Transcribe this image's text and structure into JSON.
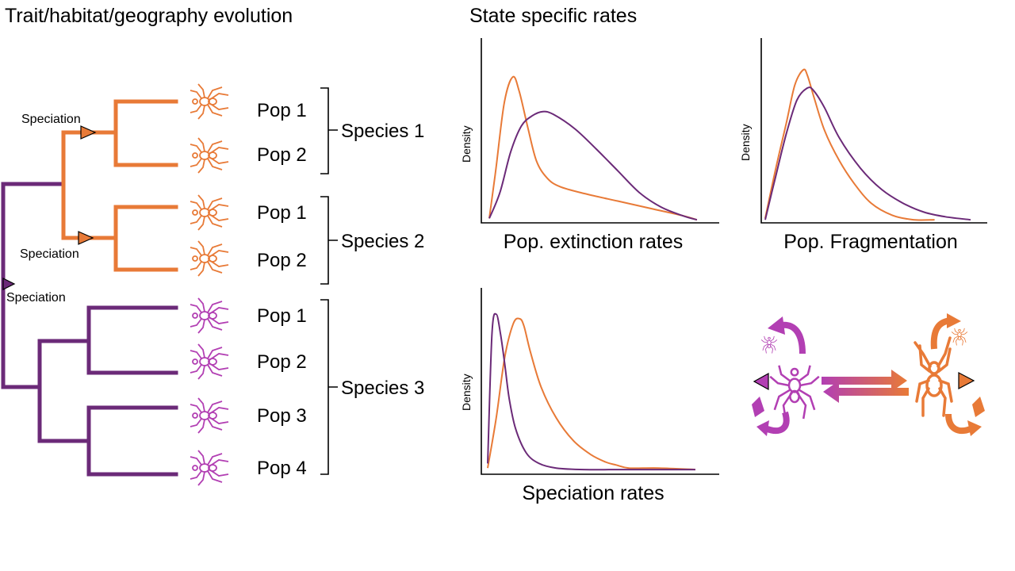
{
  "headings": {
    "left": "Trait/habitat/geography evolution",
    "right": "State specific rates"
  },
  "tree": {
    "speciation_labels": [
      "Speciation",
      "Speciation",
      "Speciation"
    ],
    "populations": [
      "Pop 1",
      "Pop 2",
      "Pop 1",
      "Pop 2",
      "Pop 1",
      "Pop 2",
      "Pop 3",
      "Pop 4"
    ],
    "species": [
      "Species 1",
      "Species 2",
      "Species 3"
    ]
  },
  "colors": {
    "orange": "#E87A37",
    "purple": "#6B2A78",
    "magenta": "#B23FB3",
    "black": "#000000"
  },
  "icons": {
    "spider": "spider-icon",
    "speciation_marker": "triangle-marker-icon",
    "transition": "double-arrow-icon"
  },
  "chart_data": [
    {
      "type": "line",
      "title": "",
      "xlabel": "Pop. extinction rates",
      "ylabel": "Density",
      "xlim": [
        0,
        1
      ],
      "ylim": [
        0,
        1
      ],
      "series": [
        {
          "name": "orange state",
          "color": "#E87A37",
          "x": [
            0.0,
            0.03,
            0.07,
            0.11,
            0.14,
            0.18,
            0.22,
            0.27,
            0.33,
            0.45,
            0.6,
            0.75,
            0.9,
            0.97
          ],
          "y": [
            0.02,
            0.35,
            0.82,
            1.0,
            0.9,
            0.65,
            0.42,
            0.3,
            0.24,
            0.19,
            0.14,
            0.09,
            0.04,
            0.01
          ]
        },
        {
          "name": "purple state",
          "color": "#6B2A78",
          "x": [
            0.0,
            0.05,
            0.1,
            0.15,
            0.2,
            0.25,
            0.3,
            0.4,
            0.5,
            0.6,
            0.7,
            0.8,
            0.9,
            0.97
          ],
          "y": [
            0.02,
            0.2,
            0.48,
            0.66,
            0.73,
            0.76,
            0.74,
            0.64,
            0.5,
            0.35,
            0.2,
            0.1,
            0.04,
            0.01
          ]
        }
      ]
    },
    {
      "type": "line",
      "title": "",
      "xlabel": "Pop. Fragmentation",
      "ylabel": "Density",
      "xlim": [
        0,
        1
      ],
      "ylim": [
        0,
        1
      ],
      "series": [
        {
          "name": "orange state",
          "color": "#E87A37",
          "x": [
            0.0,
            0.05,
            0.1,
            0.14,
            0.18,
            0.2,
            0.23,
            0.28,
            0.35,
            0.42,
            0.5,
            0.6,
            0.7,
            0.8
          ],
          "y": [
            0.02,
            0.35,
            0.65,
            0.9,
            1.0,
            0.96,
            0.82,
            0.6,
            0.4,
            0.25,
            0.12,
            0.04,
            0.01,
            0.01
          ]
        },
        {
          "name": "purple state",
          "color": "#6B2A78",
          "x": [
            0.0,
            0.05,
            0.1,
            0.15,
            0.2,
            0.23,
            0.28,
            0.35,
            0.45,
            0.55,
            0.65,
            0.75,
            0.85,
            0.97
          ],
          "y": [
            0.01,
            0.3,
            0.58,
            0.8,
            0.88,
            0.86,
            0.75,
            0.55,
            0.35,
            0.21,
            0.12,
            0.06,
            0.03,
            0.01
          ]
        }
      ]
    },
    {
      "type": "line",
      "title": "",
      "xlabel": "Speciation rates",
      "ylabel": "Density",
      "xlim": [
        0,
        1
      ],
      "ylim": [
        0,
        1
      ],
      "series": [
        {
          "name": "orange state",
          "color": "#E87A37",
          "x": [
            0.0,
            0.04,
            0.08,
            0.12,
            0.15,
            0.17,
            0.2,
            0.25,
            0.32,
            0.4,
            0.48,
            0.55,
            0.6,
            0.66,
            0.8,
            0.97
          ],
          "y": [
            0.02,
            0.35,
            0.75,
            0.97,
            1.0,
            0.95,
            0.78,
            0.55,
            0.35,
            0.2,
            0.11,
            0.06,
            0.04,
            0.02,
            0.02,
            0.01
          ]
        },
        {
          "name": "purple state",
          "color": "#6B2A78",
          "x": [
            0.0,
            0.02,
            0.04,
            0.06,
            0.08,
            0.1,
            0.13,
            0.18,
            0.24,
            0.32,
            0.45,
            0.65,
            0.97
          ],
          "y": [
            0.05,
            0.9,
            1.03,
            0.9,
            0.7,
            0.48,
            0.28,
            0.12,
            0.05,
            0.02,
            0.01,
            0.01,
            0.01
          ]
        }
      ]
    }
  ]
}
